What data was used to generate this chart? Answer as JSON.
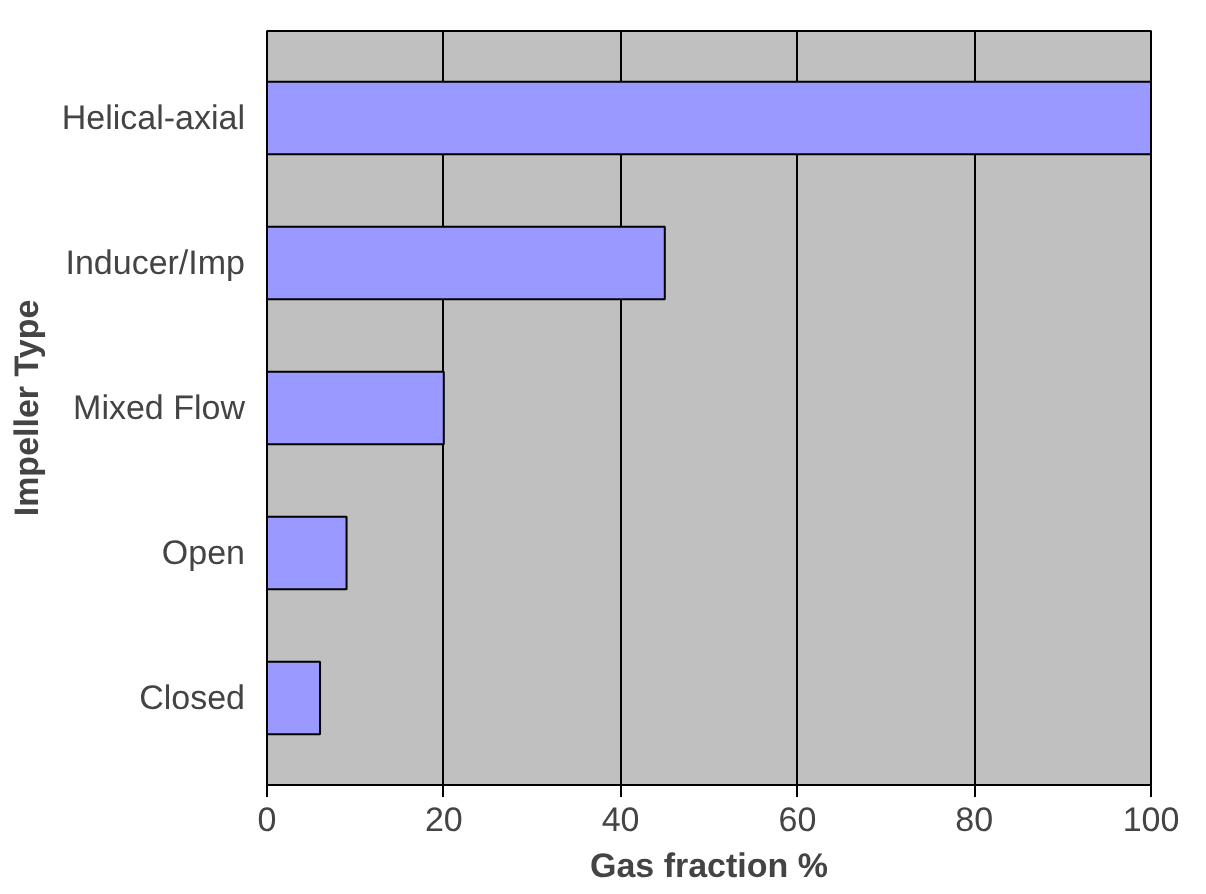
{
  "chart_data": {
    "type": "bar",
    "orientation": "horizontal",
    "categories": [
      "Helical-axial",
      "Inducer/Imp",
      "Mixed Flow",
      "Open",
      "Closed"
    ],
    "values": [
      100,
      45,
      20,
      9,
      6
    ],
    "color": "#9999ff",
    "xlabel": "Gas fraction %",
    "ylabel": "Impeller Type",
    "xlim": [
      0,
      100
    ],
    "xticks": [
      0,
      20,
      40,
      60,
      80,
      100
    ],
    "grid": "x"
  }
}
